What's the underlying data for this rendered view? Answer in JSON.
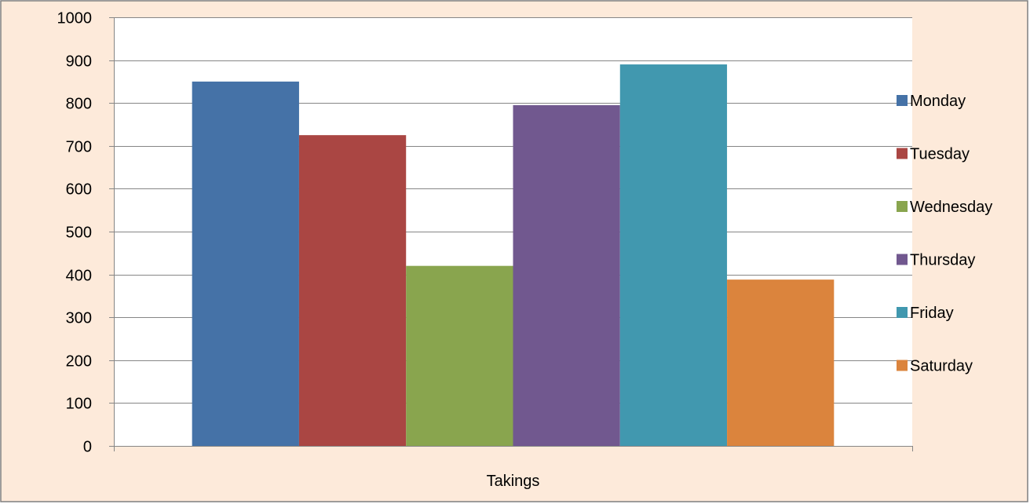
{
  "chart_data": {
    "type": "bar",
    "categories": [
      "Takings"
    ],
    "series": [
      {
        "name": "Monday",
        "values": [
          850
        ],
        "color": "#4572A7"
      },
      {
        "name": "Tuesday",
        "values": [
          725
        ],
        "color": "#AA4643"
      },
      {
        "name": "Wednesday",
        "values": [
          420
        ],
        "color": "#89A54E"
      },
      {
        "name": "Thursday",
        "values": [
          795
        ],
        "color": "#71588F"
      },
      {
        "name": "Friday",
        "values": [
          890
        ],
        "color": "#4198AF"
      },
      {
        "name": "Saturday",
        "values": [
          388
        ],
        "color": "#DB843D"
      }
    ],
    "title": "",
    "xlabel": "",
    "ylabel": "",
    "ylim": [
      0,
      1000
    ],
    "yticks": [
      "0",
      "100",
      "200",
      "300",
      "400",
      "500",
      "600",
      "700",
      "800",
      "900",
      "1000"
    ],
    "grid": true,
    "legend_position": "right",
    "background_color": "#FDEADA",
    "plot_background_color": "#FFFFFF"
  }
}
